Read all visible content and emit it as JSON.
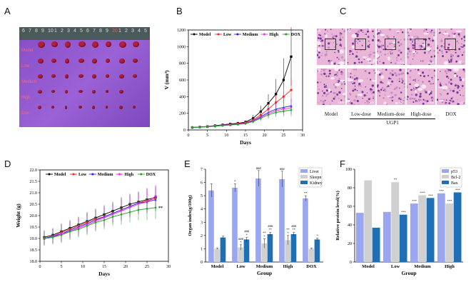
{
  "panels": {
    "A": {
      "letter": "A",
      "ruler_numbers": [
        "6",
        "7",
        "8",
        "9",
        "10",
        "1",
        "2",
        "3",
        "4",
        "5",
        "6",
        "7",
        "8",
        "9",
        "20",
        "1",
        "2",
        "3",
        "4",
        "5"
      ],
      "group_labels": [
        "Model",
        "Low",
        "Medium",
        "High",
        "Dox"
      ]
    },
    "B": {
      "letter": "B",
      "chart_data": {
        "type": "line",
        "xlabel": "Days",
        "ylabel": "V (mm³)",
        "xlim": [
          0,
          30
        ],
        "ylim": [
          0,
          1200
        ],
        "xticks": [
          0,
          5,
          10,
          15,
          20,
          25,
          30
        ],
        "yticks": [
          0,
          200,
          400,
          600,
          800,
          1000,
          1200
        ],
        "x": [
          1,
          3,
          5,
          7,
          9,
          11,
          13,
          15,
          17,
          19,
          21,
          23,
          25,
          27
        ],
        "series": [
          {
            "name": "Model",
            "color": "#000000",
            "marker": "square",
            "values": [
              30,
              36,
              42,
              52,
              62,
              72,
              80,
              95,
              140,
              220,
              320,
              430,
              600,
              880
            ],
            "err": [
              5,
              6,
              8,
              10,
              12,
              15,
              18,
              22,
              40,
              70,
              110,
              180,
              260,
              350
            ]
          },
          {
            "name": "Low",
            "color": "#ff2020",
            "marker": "circle",
            "values": [
              30,
              35,
              40,
              48,
              58,
              66,
              74,
              88,
              120,
              180,
              250,
              330,
              400,
              480
            ],
            "err": [
              5,
              6,
              7,
              9,
              10,
              12,
              15,
              18,
              30,
              50,
              70,
              90,
              110,
              140
            ]
          },
          {
            "name": "Medium",
            "color": "#2020ff",
            "marker": "triangle",
            "values": [
              30,
              34,
              40,
              47,
              56,
              63,
              70,
              82,
              110,
              160,
              210,
              250,
              270,
              290
            ],
            "err": [
              5,
              6,
              7,
              8,
              9,
              10,
              12,
              15,
              25,
              40,
              55,
              65,
              75,
              85
            ]
          },
          {
            "name": "High",
            "color": "#ff20ff",
            "marker": "triangle-down",
            "values": [
              30,
              34,
              39,
              46,
              54,
              61,
              68,
              80,
              105,
              150,
              195,
              230,
              250,
              265
            ],
            "err": [
              5,
              6,
              7,
              8,
              9,
              10,
              12,
              15,
              22,
              35,
              50,
              60,
              70,
              80
            ]
          },
          {
            "name": "DOX",
            "color": "#20a020",
            "marker": "diamond",
            "values": [
              30,
              33,
              38,
              45,
              52,
              59,
              66,
              76,
              100,
              140,
              180,
              210,
              225,
              240
            ],
            "err": [
              5,
              6,
              7,
              8,
              9,
              10,
              12,
              14,
              20,
              32,
              45,
              55,
              65,
              75
            ]
          }
        ]
      }
    },
    "C": {
      "letter": "C",
      "top_labels": [
        "A",
        "C",
        "E",
        "G",
        "I"
      ],
      "bottom_labels": [
        "B",
        "D",
        "F",
        "H",
        "J"
      ],
      "scale_top": "×200",
      "scale_bottom": "×400",
      "captions": [
        "Model",
        "Low-dose",
        "Medium-dose",
        "High-dose",
        "DOX"
      ],
      "group_caption": "UGP1"
    },
    "D": {
      "letter": "D",
      "chart_data": {
        "type": "line",
        "xlabel": "Days",
        "ylabel": "Weight (g)",
        "xlim": [
          0,
          30
        ],
        "ylim": [
          18.0,
          22.0
        ],
        "xticks": [
          0,
          5,
          10,
          15,
          20,
          25,
          30
        ],
        "yticks": [
          18.0,
          18.5,
          19.0,
          19.5,
          20.0,
          20.5,
          21.0,
          21.5,
          22.0
        ],
        "x": [
          1,
          3,
          5,
          7,
          9,
          11,
          13,
          15,
          17,
          19,
          21,
          23,
          25,
          27
        ],
        "annotation": "**",
        "series": [
          {
            "name": "Model",
            "color": "#000000",
            "marker": "square",
            "values": [
              19.05,
              19.15,
              19.3,
              19.45,
              19.6,
              19.75,
              19.9,
              20.05,
              20.2,
              20.35,
              20.5,
              20.6,
              20.7,
              20.8
            ],
            "err": [
              0.3,
              0.3,
              0.35,
              0.35,
              0.35,
              0.4,
              0.4,
              0.4,
              0.4,
              0.45,
              0.45,
              0.45,
              0.5,
              0.5
            ]
          },
          {
            "name": "Low",
            "color": "#ff2020",
            "marker": "circle",
            "values": [
              19.0,
              19.1,
              19.25,
              19.4,
              19.55,
              19.7,
              19.85,
              19.95,
              20.1,
              20.25,
              20.4,
              20.55,
              20.65,
              20.75
            ],
            "err": [
              0.3,
              0.3,
              0.35,
              0.35,
              0.35,
              0.4,
              0.4,
              0.4,
              0.4,
              0.45,
              0.45,
              0.45,
              0.5,
              0.5
            ]
          },
          {
            "name": "Medium",
            "color": "#2020ff",
            "marker": "triangle",
            "values": [
              19.0,
              19.1,
              19.2,
              19.35,
              19.5,
              19.65,
              19.8,
              19.95,
              20.1,
              20.25,
              20.4,
              20.55,
              20.6,
              20.7
            ],
            "err": [
              0.3,
              0.3,
              0.35,
              0.35,
              0.35,
              0.4,
              0.4,
              0.4,
              0.4,
              0.45,
              0.45,
              0.45,
              0.5,
              0.5
            ]
          },
          {
            "name": "High",
            "color": "#ff20ff",
            "marker": "triangle-down",
            "values": [
              19.0,
              19.05,
              19.2,
              19.3,
              19.45,
              19.6,
              19.75,
              19.9,
              20.05,
              20.2,
              20.35,
              20.5,
              20.6,
              20.85
            ],
            "err": [
              0.3,
              0.3,
              0.35,
              0.35,
              0.35,
              0.4,
              0.4,
              0.4,
              0.4,
              0.45,
              0.45,
              0.45,
              0.5,
              0.5
            ]
          },
          {
            "name": "DOX",
            "color": "#20a020",
            "marker": "diamond",
            "values": [
              19.0,
              19.05,
              19.15,
              19.3,
              19.4,
              19.55,
              19.7,
              19.8,
              19.95,
              20.05,
              20.15,
              20.25,
              20.3,
              20.35
            ],
            "err": [
              0.3,
              0.3,
              0.35,
              0.35,
              0.35,
              0.4,
              0.4,
              0.4,
              0.4,
              0.45,
              0.45,
              0.45,
              0.5,
              0.5
            ]
          }
        ]
      }
    },
    "E": {
      "letter": "E",
      "chart_data": {
        "type": "bar",
        "xlabel": "Group",
        "ylabel": "Organ index(g/100g)",
        "ylim": [
          0,
          7
        ],
        "yticks": [
          0,
          1,
          2,
          3,
          4,
          5,
          6,
          7
        ],
        "categories": [
          "Model",
          "Low",
          "Medium",
          "High",
          "DOX"
        ],
        "series": [
          {
            "name": "Liver",
            "color": "#9aa6f0",
            "values": [
              5.4,
              5.6,
              6.3,
              6.25,
              4.8
            ],
            "err": [
              0.5,
              0.3,
              0.6,
              0.6,
              0.2
            ],
            "labels": [
              "",
              "*",
              "###",
              "###",
              "**"
            ]
          },
          {
            "name": "Sleepn",
            "color": "#d0d0d0",
            "values": [
              1.0,
              1.1,
              1.4,
              1.65,
              1.0
            ],
            "err": [
              0.05,
              0.2,
              0.35,
              0.35,
              0.05
            ],
            "labels": [
              "",
              "###\n*",
              "**\n*",
              "**\n*",
              ""
            ]
          },
          {
            "name": "Kidney",
            "color": "#1f6fb5",
            "values": [
              1.85,
              1.7,
              2.1,
              2.1,
              1.7
            ],
            "err": [
              0.1,
              0.15,
              0.15,
              0.15,
              0.1
            ],
            "labels": [
              "",
              "###\n*",
              "###\n**",
              "###\n**",
              "*"
            ]
          }
        ]
      }
    },
    "F": {
      "letter": "F",
      "chart_data": {
        "type": "bar",
        "xlabel": "Group",
        "ylabel": "Relative protein level(%)",
        "ylim": [
          0,
          100
        ],
        "yticks": [
          0,
          20,
          40,
          60,
          80,
          100
        ],
        "categories": [
          "Model",
          "Low",
          "Medium",
          "High"
        ],
        "series": [
          {
            "name": "p53",
            "color": "#9aa6f0",
            "values": [
              53,
              54,
              63,
              74
            ],
            "labels": [
              "",
              "",
              "***",
              "***"
            ]
          },
          {
            "name": "Bcl-2",
            "color": "#d0d0d0",
            "values": [
              88,
              86,
              72,
              63
            ],
            "labels": [
              "",
              "**",
              "***",
              "***"
            ]
          },
          {
            "name": "Bax",
            "color": "#1f6fb5",
            "values": [
              37,
              51,
              69,
              75
            ],
            "labels": [
              "",
              "***",
              "***",
              "***"
            ]
          }
        ]
      }
    }
  }
}
